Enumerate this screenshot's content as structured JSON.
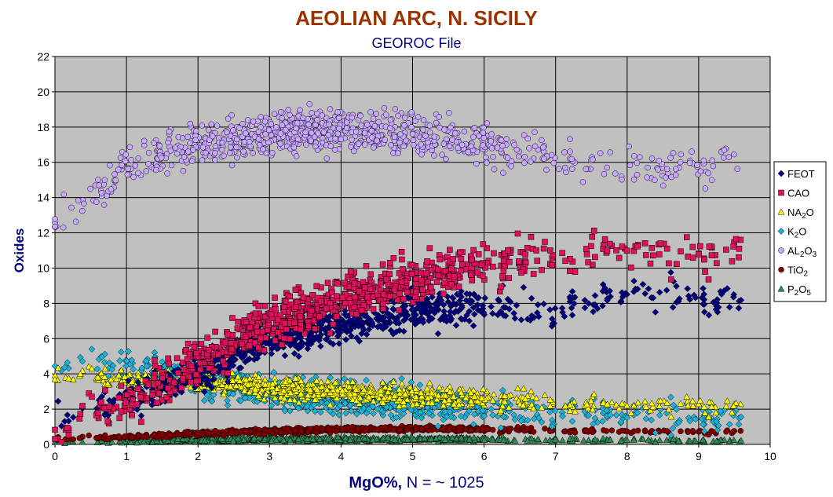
{
  "chart_data": {
    "type": "scatter",
    "title": "AEOLIAN ARC, N. SICILY",
    "subtitle": "GEOROC File",
    "xlabel_bold": "MgO%,",
    "xlabel_rest": "N = ~ 1025",
    "ylabel": "Oxides",
    "xlim": [
      0,
      10
    ],
    "ylim": [
      0,
      22
    ],
    "x_ticks": [
      0,
      1,
      2,
      3,
      4,
      5,
      6,
      7,
      8,
      9,
      10
    ],
    "y_ticks": [
      0,
      2,
      4,
      6,
      8,
      10,
      12,
      14,
      16,
      18,
      20,
      22
    ],
    "grid": true,
    "legend_position": "right",
    "plot_background": "#c0c0c0",
    "series": [
      {
        "name": "FEOT",
        "legend": [
          "FEOT",
          "",
          ""
        ],
        "marker": "diamond",
        "color": "#000080",
        "trend": [
          [
            0,
            1.6
          ],
          [
            1,
            2.8
          ],
          [
            2,
            4.0
          ],
          [
            3,
            6.0
          ],
          [
            4,
            6.8
          ],
          [
            5,
            7.6
          ],
          [
            6,
            7.8
          ],
          [
            7,
            7.6
          ],
          [
            8,
            8.6
          ],
          [
            9,
            8.4
          ],
          [
            9.6,
            8.0
          ]
        ]
      },
      {
        "name": "CAO",
        "legend": [
          "CAO",
          "",
          ""
        ],
        "marker": "square",
        "color": "#e0105a",
        "trend": [
          [
            0,
            0.8
          ],
          [
            1,
            2.6
          ],
          [
            2,
            4.6
          ],
          [
            3,
            7.0
          ],
          [
            4,
            8.2
          ],
          [
            5,
            9.3
          ],
          [
            6,
            10.2
          ],
          [
            7,
            10.8
          ],
          [
            8,
            11.0
          ],
          [
            9,
            10.6
          ],
          [
            9.6,
            11.0
          ]
        ]
      },
      {
        "name": "NA2O",
        "legend": [
          "NA",
          "2",
          "O"
        ],
        "marker": "triangle",
        "color": "#ffff00",
        "trend": [
          [
            0,
            3.9
          ],
          [
            1,
            3.8
          ],
          [
            2,
            3.6
          ],
          [
            3,
            3.2
          ],
          [
            4,
            3.0
          ],
          [
            5,
            2.8
          ],
          [
            6,
            2.6
          ],
          [
            7,
            2.4
          ],
          [
            8,
            2.2
          ],
          [
            9,
            2.2
          ],
          [
            9.6,
            2.0
          ]
        ]
      },
      {
        "name": "K2O",
        "legend": [
          "K",
          "2",
          "O"
        ],
        "marker": "diamond",
        "color": "#19b3d8",
        "trend": [
          [
            0,
            4.8
          ],
          [
            1,
            4.6
          ],
          [
            2,
            3.6
          ],
          [
            3,
            3.0
          ],
          [
            4,
            2.6
          ],
          [
            5,
            2.4
          ],
          [
            6,
            2.0
          ],
          [
            7,
            1.8
          ],
          [
            8,
            1.6
          ],
          [
            9,
            1.5
          ],
          [
            9.6,
            1.4
          ]
        ]
      },
      {
        "name": "AL2O3",
        "legend": [
          "AL",
          "2",
          "O",
          "3"
        ],
        "marker": "circle",
        "color": "#c8a8ff",
        "trend": [
          [
            0,
            12.8
          ],
          [
            0.5,
            14.0
          ],
          [
            1,
            15.8
          ],
          [
            2,
            17.0
          ],
          [
            3,
            17.6
          ],
          [
            4,
            17.8
          ],
          [
            5,
            17.6
          ],
          [
            6,
            17.0
          ],
          [
            7,
            16.4
          ],
          [
            8,
            15.6
          ],
          [
            9,
            15.5
          ],
          [
            9.6,
            16.5
          ]
        ]
      },
      {
        "name": "TIO2",
        "legend": [
          "TiO",
          "2",
          ""
        ],
        "marker": "circle",
        "color": "#800000",
        "trend": [
          [
            0,
            0.3
          ],
          [
            1,
            0.45
          ],
          [
            2,
            0.6
          ],
          [
            3,
            0.75
          ],
          [
            4,
            0.85
          ],
          [
            5,
            0.9
          ],
          [
            6,
            0.85
          ],
          [
            7,
            0.8
          ],
          [
            8,
            0.75
          ],
          [
            9,
            0.7
          ],
          [
            9.6,
            0.7
          ]
        ]
      },
      {
        "name": "P2O5",
        "legend": [
          "P",
          "2",
          "O",
          "5"
        ],
        "marker": "triangle",
        "color": "#2e8b57",
        "trend": [
          [
            0,
            0.1
          ],
          [
            1,
            0.2
          ],
          [
            2,
            0.25
          ],
          [
            3,
            0.3
          ],
          [
            4,
            0.3
          ],
          [
            5,
            0.3
          ],
          [
            6,
            0.3
          ],
          [
            7,
            0.25
          ],
          [
            8,
            0.25
          ],
          [
            9,
            0.2
          ],
          [
            9.6,
            0.2
          ]
        ]
      }
    ]
  },
  "colors": {
    "title": "#993300",
    "subtitle": "#000080",
    "axis_title": "#000080"
  }
}
